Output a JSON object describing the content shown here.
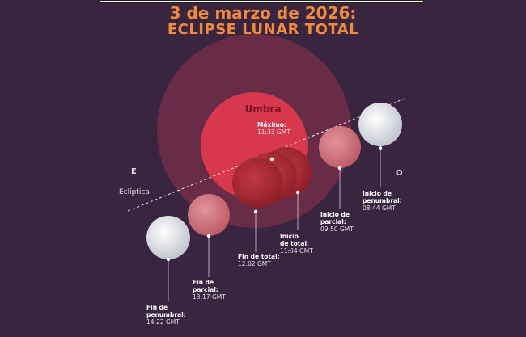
{
  "title": {
    "date": "3 de marzo de 2026:",
    "subtitle": "ECLIPSE LUNAR TOTAL"
  },
  "diagram": {
    "umbra_label": "Umbra",
    "ecliptic_label": "Eclíptica",
    "east_label": "E",
    "west_label": "O",
    "events": [
      {
        "id": "inicio-penumbral",
        "lines": [
          "Inicio de",
          "penumbral:"
        ],
        "time": "08:44 GMT"
      },
      {
        "id": "inicio-parcial",
        "lines": [
          "Inicio de",
          "parcial:"
        ],
        "time": "09:50 GMT"
      },
      {
        "id": "inicio-total",
        "lines": [
          "Inicio",
          "de total:"
        ],
        "time": "11:04 GMT"
      },
      {
        "id": "maximo",
        "lines": [
          "Máximo:"
        ],
        "time": "11:33 GMT"
      },
      {
        "id": "fin-total",
        "lines": [
          "Fin de total:"
        ],
        "time": "12:02 GMT"
      },
      {
        "id": "fin-parcial",
        "lines": [
          "Fin de",
          "parcial:"
        ],
        "time": "13:17 GMT"
      },
      {
        "id": "fin-penumbral",
        "lines": [
          "Fin de",
          "penumbral:"
        ],
        "time": "14:22 GMT"
      }
    ]
  },
  "colors": {
    "background": "#3a2540",
    "title": "#f08a3c",
    "penumbra": "#7a2f4a",
    "umbra": "#d8384e",
    "total_moon": "#a8242e",
    "partial_moon": "#d97a82",
    "full_moon": "#e8eaee"
  }
}
